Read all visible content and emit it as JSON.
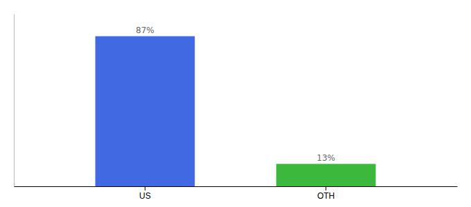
{
  "chart_data": {
    "type": "bar",
    "categories": [
      "US",
      "OTH"
    ],
    "values": [
      87,
      13
    ],
    "value_labels": [
      "87%",
      "13%"
    ],
    "colors": [
      "#4169E1",
      "#3CB93C"
    ],
    "ylim": [
      0,
      100
    ],
    "data_labels": true,
    "tick_labels": "x"
  }
}
